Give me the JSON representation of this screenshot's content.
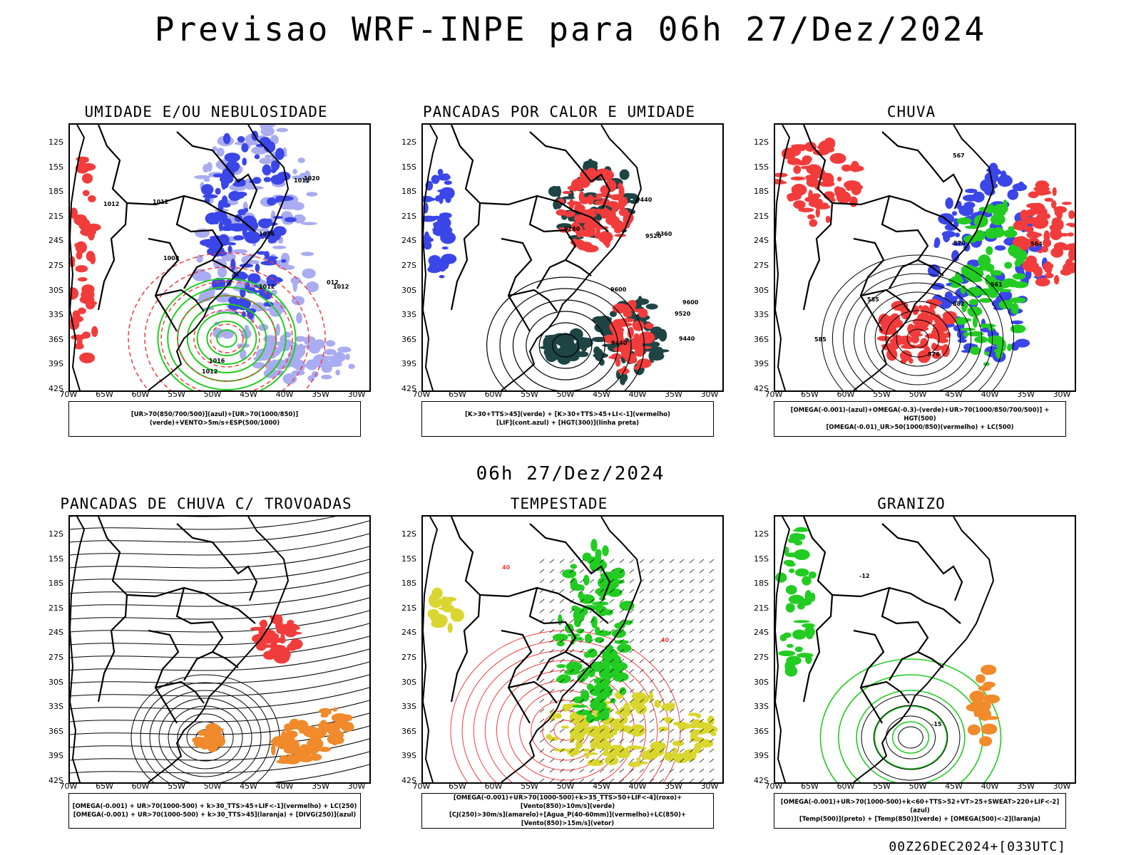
{
  "title": "Previsao WRF-INPE  para 06h 27/Dez/2024",
  "mid_time": "06h 27/Dez/2024",
  "footer": "00Z26DEC2024+[033UTC]",
  "lat_labels": [
    "12S",
    "15S",
    "18S",
    "21S",
    "24S",
    "27S",
    "30S",
    "33S",
    "36S",
    "39S",
    "42S"
  ],
  "lon_labels": [
    "70W",
    "65W",
    "60W",
    "55W",
    "50W",
    "45W",
    "40W",
    "35W",
    "30W"
  ],
  "panels": [
    {
      "title": "UMIDADE E/OU NEBULOSIDADE",
      "legend": [
        "[UR>70(850/700/500)](azul)+[UR>70(1000/850)](verde)+VENTO>5m/s+ESP(500/1000)"
      ],
      "contour_labels": [
        "1012",
        "1012",
        "1016",
        "1016",
        "1012",
        "1012",
        "1012",
        "1008",
        "1020",
        "1012",
        "012"
      ]
    },
    {
      "title": "PANCADAS POR CALOR E UMIDADE",
      "legend": [
        "[K>30+TTS>45](verde) + [K>30+TTS>45+LI<-1](vermelho)",
        "[LIF](cont.azul) + [HGT(300)](linha preta)"
      ],
      "contour_labels": [
        "9600",
        "9600",
        "9520",
        "9520",
        "9440",
        "9440",
        "9360",
        "9280",
        "9440"
      ]
    },
    {
      "title": "CHUVA",
      "legend": [
        "[OMEGA(-0.001)-(azul)+OMEGA(-0.3)-(verde)+UR>70(1000/850/700/500)] + HGT(500)",
        "[OMEGA(-0.01)_UR>50(1000/850)(vermelho) + LC(500)"
      ],
      "contour_labels": [
        "582",
        "585",
        "576",
        "570",
        "564",
        "561",
        "567",
        "585"
      ]
    },
    {
      "title": "PANCADAS DE CHUVA C/ TROVOADAS",
      "legend": [
        "[OMEGA(-0.001) + UR>70(1000-500) + k>30_TTS>45+LIF<-1](vermelho) + LC(250)",
        "[OMEGA(-0.001) + UR>70(1000-500) + k>30_TTS>45](laranja) + [DIVG(250)](azul)"
      ],
      "contour_labels": []
    },
    {
      "title": "TEMPESTADE",
      "legend": [
        "[OMEGA(-0.001)+UR>70(1000-500)+k>35_TTS>50+LIF<-4](roxo)+[Vento(850)>10m/s](verde)",
        "[CJ(250)>30m/s](amarelo)+[Agua_P(40-60mm)](vermelho)+LC(850)+[Vento(850)>15m/s](vetor)"
      ],
      "contour_labels": [
        "40",
        "40"
      ]
    },
    {
      "title": "GRANIZO",
      "legend": [
        "[OMEGA(-0.001)+UR>70(1000-500)+k<60+TTS>52+VT>25+SWEAT>220+LIF<-2](azul)",
        "[Temp(500)](preto) + [Temp(850)](verde) + [OMEGA(500)<-2](laranja)"
      ],
      "contour_labels": [
        "-15",
        "-12"
      ]
    }
  ],
  "colors": {
    "blue": "#3a46e8",
    "light_blue": "#a9acf0",
    "green": "#22cc22",
    "red": "#f23c3c",
    "dark_teal": "#1e4444",
    "orange": "#f08a2a",
    "yellow": "#d9d630",
    "black": "#000000"
  }
}
